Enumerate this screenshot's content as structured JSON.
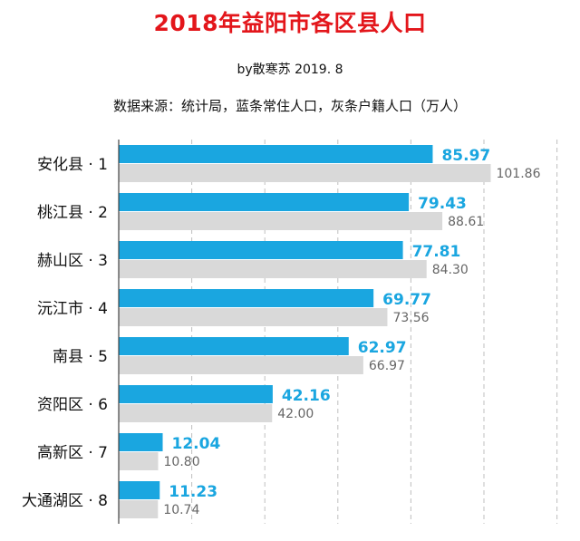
{
  "header": {
    "title": "2018年益阳市各区县人口",
    "byline": "by散寒苏  2019. 8",
    "source_note": "数据来源：统计局，蓝条常住人口，灰条户籍人口（万人）"
  },
  "colors": {
    "resident_bar": "#1aa6e0",
    "registered_bar": "#d9d9d9",
    "title": "#e3161b",
    "gridline": "#bfbfbf"
  },
  "chart_data": {
    "type": "bar",
    "orientation": "horizontal",
    "categories": [
      "安化县 · 1",
      "桃江县 · 2",
      "赫山区 · 3",
      "沅江市 · 4",
      "南县 · 5",
      "资阳区 · 6",
      "高新区 · 7",
      "大通湖区 · 8"
    ],
    "series": [
      {
        "values": [
          85.97,
          79.43,
          77.81,
          69.77,
          62.97,
          42.16,
          12.04,
          11.23
        ],
        "labels": [
          "85.97",
          "79.43",
          "77.81",
          "69.77",
          "62.97",
          "42.16",
          "12.04",
          "11.23"
        ]
      },
      {
        "values": [
          101.86,
          88.61,
          84.3,
          73.56,
          66.97,
          42.0,
          10.8,
          10.74
        ],
        "labels": [
          "101.86",
          "88.61",
          "84.30",
          "73.56",
          "66.97",
          "42.00",
          "10.80",
          "10.74"
        ]
      }
    ],
    "xlim": [
      0,
      120
    ],
    "grid": true,
    "gridline_style": "dashed",
    "gridline_count": 6,
    "legend": "none"
  }
}
